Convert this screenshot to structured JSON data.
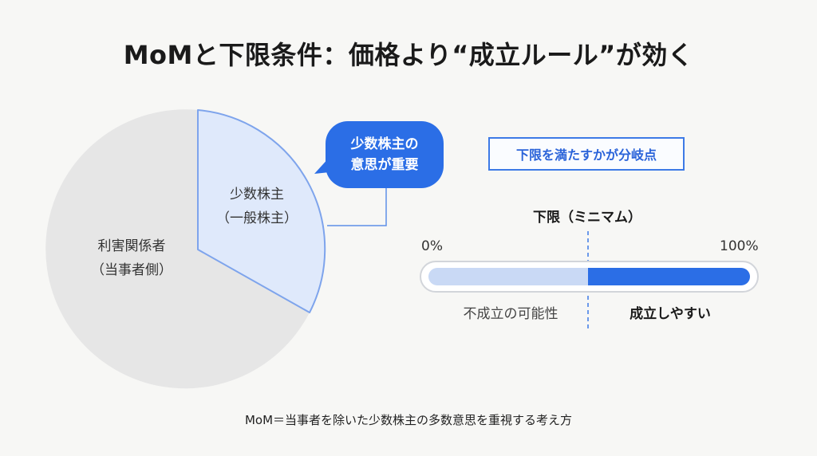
{
  "title": "MoMと下限条件：価格より“成立ルール”が効く",
  "pie": {
    "stakeholder_label_line1": "利害関係者",
    "stakeholder_label_line2": "（当事者側）",
    "minority_label_line1": "少数株主",
    "minority_label_line2": "（一般株主）"
  },
  "bubble": {
    "line1": "少数株主の",
    "line2": "意思が重要"
  },
  "threshold": {
    "callout": "下限を満たすかが分岐点",
    "heading": "下限（ミニマム）",
    "min_label": "0%",
    "max_label": "100%",
    "below_label": "不成立の可能性",
    "above_label": "成立しやすい"
  },
  "footnote": "MoM＝当事者を除いた少数株主の多数意思を重視する考え方",
  "colors": {
    "accent": "#2b6ee6",
    "accent_light": "#c9d9f5",
    "minority_fill": "#dfe9fb",
    "stakeholder_fill": "#e6e6e6",
    "background": "#f7f7f5"
  }
}
